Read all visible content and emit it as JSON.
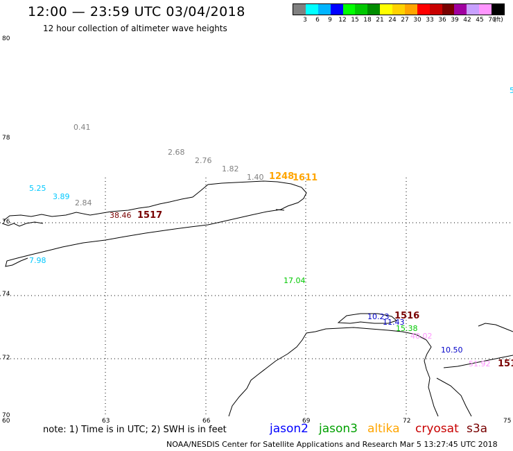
{
  "header": {
    "title": "12:00 — 23:59 UTC 03/04/2018",
    "subtitle": "12 hour collection of altimeter wave heights"
  },
  "legend": {
    "colors": [
      "#808080",
      "#00ffff",
      "#00b4ff",
      "#0000ff",
      "#00ff00",
      "#00c800",
      "#008c00",
      "#ffff00",
      "#ffd200",
      "#ffa500",
      "#ff0000",
      "#c80000",
      "#780000",
      "#a000a0",
      "#c8a0ff",
      "#ff96ff",
      "#000000"
    ],
    "labels": [
      "3",
      "6",
      "9",
      "12",
      "15",
      "18",
      "21",
      "24",
      "27",
      "30",
      "33",
      "36",
      "39",
      "42",
      "45",
      "70",
      "(ft)"
    ]
  },
  "axes": {
    "lat_labels": [
      "80",
      "78",
      "76",
      "74",
      "72",
      "70"
    ],
    "lon_labels": [
      "60",
      "63",
      "66",
      "69",
      "72",
      "75"
    ]
  },
  "wave_heights": [
    {
      "text": "0.41",
      "color": "#808080",
      "big": false
    },
    {
      "text": "2.68",
      "color": "#808080",
      "big": false
    },
    {
      "text": "2.76",
      "color": "#808080",
      "big": false
    },
    {
      "text": "1.82",
      "color": "#808080",
      "big": false
    },
    {
      "text": "1.40",
      "color": "#808080",
      "big": false
    },
    {
      "text": "1248",
      "color": "#ffa500",
      "big": true
    },
    {
      "text": "1611",
      "color": "#ffa500",
      "big": true
    },
    {
      "text": "5.25",
      "color": "#00c8ff",
      "big": false
    },
    {
      "text": "3.89",
      "color": "#00c8ff",
      "big": false
    },
    {
      "text": "2.84",
      "color": "#808080",
      "big": false
    },
    {
      "text": "38.46",
      "color": "#780000",
      "big": false
    },
    {
      "text": "1517",
      "color": "#780000",
      "big": true
    },
    {
      "text": "7.98",
      "color": "#00c8ff",
      "big": false
    },
    {
      "text": "17.04",
      "color": "#00c800",
      "big": false
    },
    {
      "text": "10.23",
      "color": "#0000c8",
      "big": false
    },
    {
      "text": "1516",
      "color": "#780000",
      "big": true
    },
    {
      "text": "11.43",
      "color": "#0000c8",
      "big": false
    },
    {
      "text": "15.38",
      "color": "#00c800",
      "big": false
    },
    {
      "text": "40.02",
      "color": "#ff96ff",
      "big": false
    },
    {
      "text": "10.50",
      "color": "#0000c8",
      "big": false
    },
    {
      "text": "51.92",
      "color": "#ff96ff",
      "big": false
    },
    {
      "text": "151",
      "color": "#780000",
      "big": true
    },
    {
      "text": "5",
      "color": "#00c8ff",
      "big": false
    }
  ],
  "footer": {
    "note": "note:  1) Time is in UTC;  2) SWH is in feet",
    "satellites": [
      {
        "name": "jason2",
        "color": "#0000ff"
      },
      {
        "name": "jason3",
        "color": "#00a000"
      },
      {
        "name": "altika",
        "color": "#ffa500"
      },
      {
        "name": "cryosat",
        "color": "#c80000"
      },
      {
        "name": "s3a",
        "color": "#780000"
      }
    ],
    "credit": "NOAA/NESDIS Center for Satellite Applications and Research     Mar  5 13:27:45 UTC 2018"
  }
}
